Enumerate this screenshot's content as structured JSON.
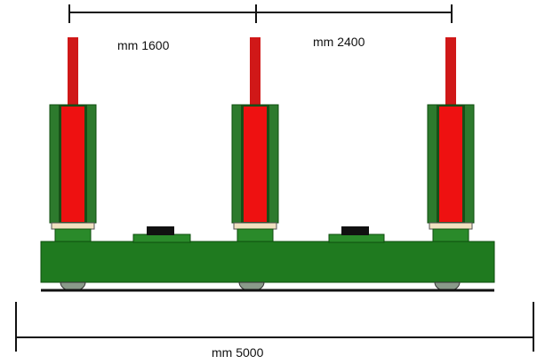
{
  "dimensions": {
    "left_spacing": "mm 1600",
    "right_spacing": "mm 2400",
    "total_length": "mm 5000"
  }
}
